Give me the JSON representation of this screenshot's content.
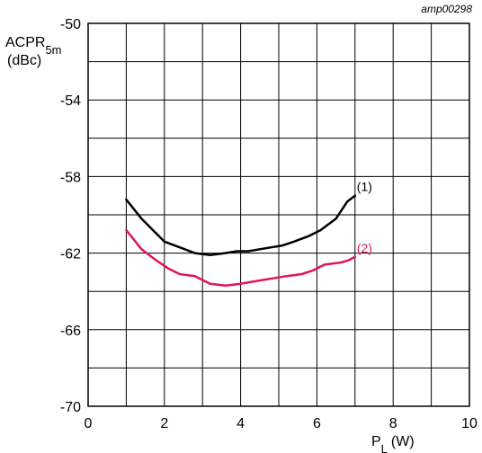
{
  "figure_ref": "amp00298",
  "chart_data": {
    "type": "line",
    "ylabel": {
      "main": "ACPR",
      "sub": "5m",
      "unit": "(dBc)"
    },
    "xlabel": {
      "main": "P",
      "sub": "L",
      "unit": "(W)"
    },
    "xlim": [
      0,
      10
    ],
    "ylim": [
      -70,
      -50
    ],
    "x_ticks": [
      0,
      2,
      4,
      6,
      8,
      10
    ],
    "y_ticks": [
      -50,
      -54,
      -58,
      -62,
      -66,
      -70
    ],
    "x_tick_labels": [
      "0",
      "2",
      "4",
      "6",
      "8",
      "10"
    ],
    "y_tick_labels": [
      "-50",
      "-54",
      "-58",
      "-62",
      "-66",
      "-70"
    ],
    "grid": {
      "x_step": 1,
      "y_step": 2,
      "enabled": true
    },
    "series": [
      {
        "name": "(1)",
        "color": "#000000",
        "x": [
          1.0,
          1.4,
          1.8,
          2.0,
          2.4,
          2.8,
          3.2,
          3.6,
          3.9,
          4.2,
          4.5,
          4.8,
          5.1,
          5.4,
          5.8,
          6.1,
          6.5,
          6.8,
          7.0
        ],
        "y": [
          -59.2,
          -60.2,
          -61.0,
          -61.4,
          -61.7,
          -62.0,
          -62.1,
          -62.0,
          -61.9,
          -61.9,
          -61.8,
          -61.7,
          -61.6,
          -61.4,
          -61.1,
          -60.8,
          -60.2,
          -59.3,
          -59.0
        ]
      },
      {
        "name": "(2)",
        "color": "#e0155c",
        "x": [
          1.0,
          1.4,
          1.8,
          2.1,
          2.4,
          2.8,
          3.2,
          3.6,
          4.0,
          4.3,
          4.6,
          4.9,
          5.2,
          5.6,
          5.9,
          6.2,
          6.6,
          6.8,
          7.0
        ],
        "y": [
          -60.8,
          -61.8,
          -62.4,
          -62.8,
          -63.1,
          -63.2,
          -63.6,
          -63.7,
          -63.6,
          -63.5,
          -63.4,
          -63.3,
          -63.2,
          -63.1,
          -62.9,
          -62.6,
          -62.5,
          -62.4,
          -62.2
        ]
      }
    ]
  }
}
